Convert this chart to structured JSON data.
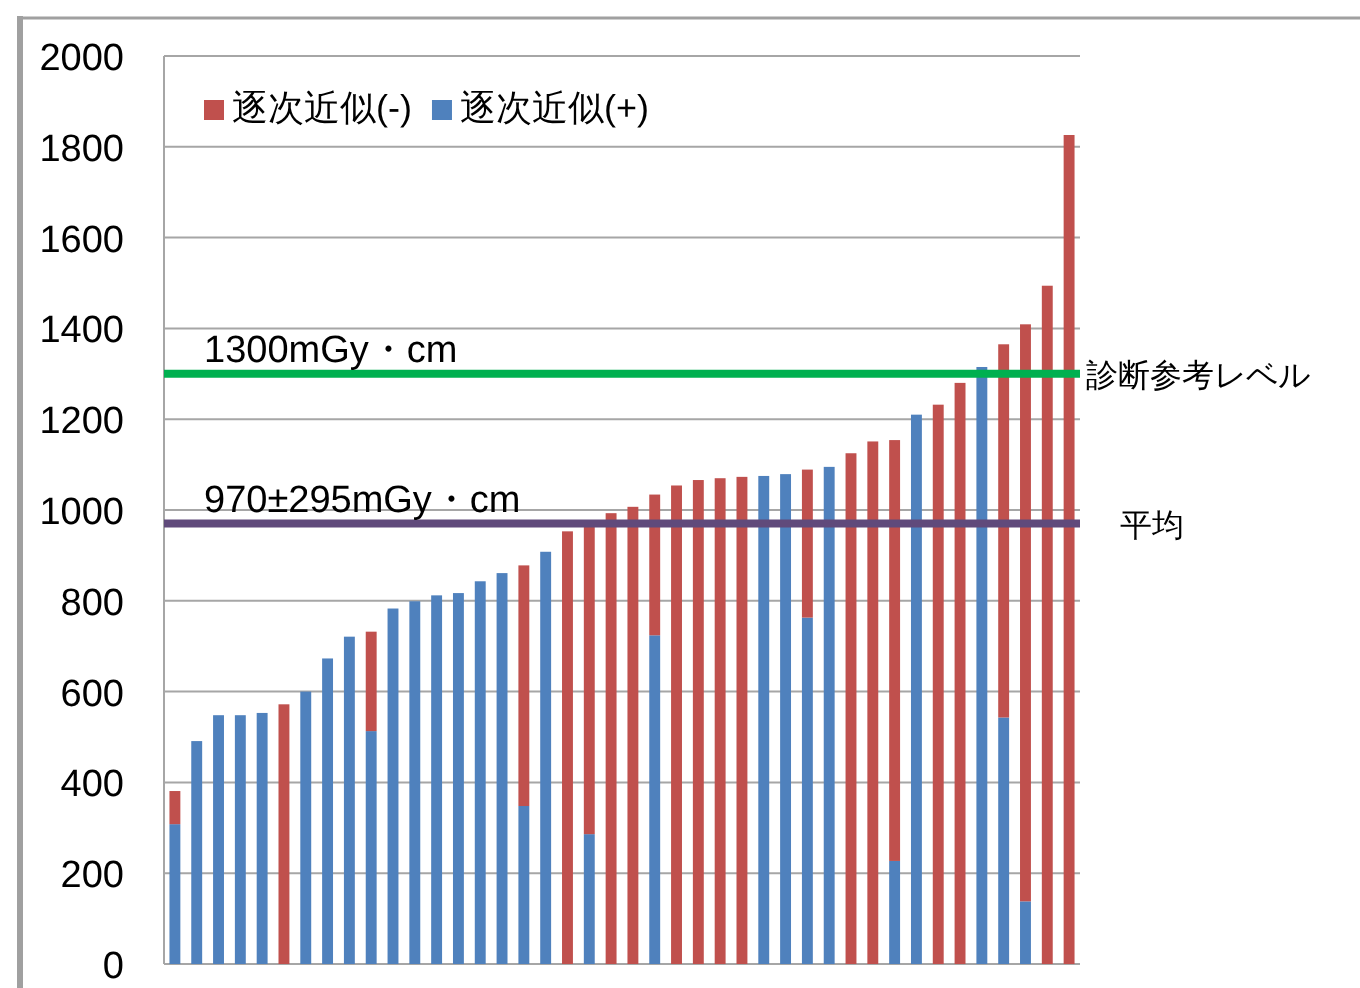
{
  "chart_data": {
    "type": "bar",
    "stacked": true,
    "categories": [
      null,
      null,
      null,
      null,
      null,
      null,
      null,
      null,
      null,
      null,
      null,
      null,
      null,
      null,
      null,
      null,
      null,
      null,
      null,
      null,
      null,
      null,
      null,
      null,
      null,
      null,
      null,
      null,
      null,
      null,
      null,
      null,
      null,
      null,
      null,
      null,
      null,
      null,
      null,
      null,
      null,
      null
    ],
    "series": [
      {
        "name": "逐次近似(+)",
        "color": "#4f81bd",
        "values": [
          308,
          491,
          548,
          548,
          553,
          null,
          600,
          673,
          721,
          513,
          783,
          799,
          812,
          817,
          843,
          861,
          348,
          908,
          null,
          286,
          null,
          null,
          724,
          null,
          null,
          null,
          null,
          1075,
          1079,
          763,
          1095,
          null,
          null,
          227,
          1210,
          null,
          null,
          1315,
          543,
          138,
          null,
          null
        ]
      },
      {
        "name": "逐次近似(-)",
        "color": "#c0504d",
        "values": [
          73,
          null,
          null,
          null,
          null,
          572,
          null,
          null,
          null,
          219,
          null,
          null,
          null,
          null,
          null,
          null,
          530,
          null,
          953,
          679,
          993,
          1007,
          310,
          1054,
          1066,
          1070,
          1073,
          null,
          null,
          326,
          null,
          1125,
          1151,
          927,
          null,
          1232,
          1280,
          null,
          822,
          1271,
          1494,
          1826
        ]
      }
    ],
    "ylim": [
      0,
      2000
    ],
    "yticks": [
      0,
      200,
      400,
      600,
      800,
      1000,
      1200,
      1400,
      1600,
      1800,
      2000
    ],
    "grid": "y",
    "legend": "top left",
    "ref_lines": [
      {
        "axis": "y",
        "value": 1300,
        "label": "診断参考レベル",
        "color": "#00b050"
      },
      {
        "axis": "y",
        "value": 970,
        "label": "平均",
        "color": "#604a7b"
      }
    ],
    "annotations": [
      {
        "text": "1300mGy・cm",
        "y": 1300
      },
      {
        "text": "970±295mGy・cm",
        "y": 970
      }
    ]
  }
}
